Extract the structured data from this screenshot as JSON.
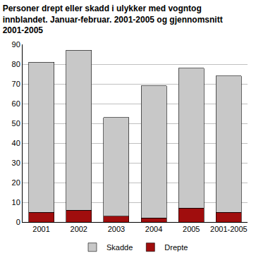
{
  "chart_data": {
    "type": "bar",
    "title": "Personer drept eller skadd i ulykker med vogntog innblandet. Januar-februar. 2001-2005 og gjennomsnitt 2001-2005",
    "categories": [
      "2001",
      "2002",
      "2003",
      "2004",
      "2005",
      "2001-2005"
    ],
    "series": [
      {
        "name": "Drepte",
        "color": "#a00d0d",
        "values": [
          5,
          6,
          3,
          2,
          7,
          5
        ]
      },
      {
        "name": "Skadde",
        "color": "#c8c8c8",
        "values": [
          76,
          81,
          50,
          67,
          71,
          69
        ]
      }
    ],
    "stacked": true,
    "ylim": [
      0,
      90
    ],
    "yticks": [
      0,
      10,
      20,
      30,
      40,
      50,
      60,
      70,
      80,
      90
    ],
    "grid": true,
    "legend": "bottom"
  }
}
